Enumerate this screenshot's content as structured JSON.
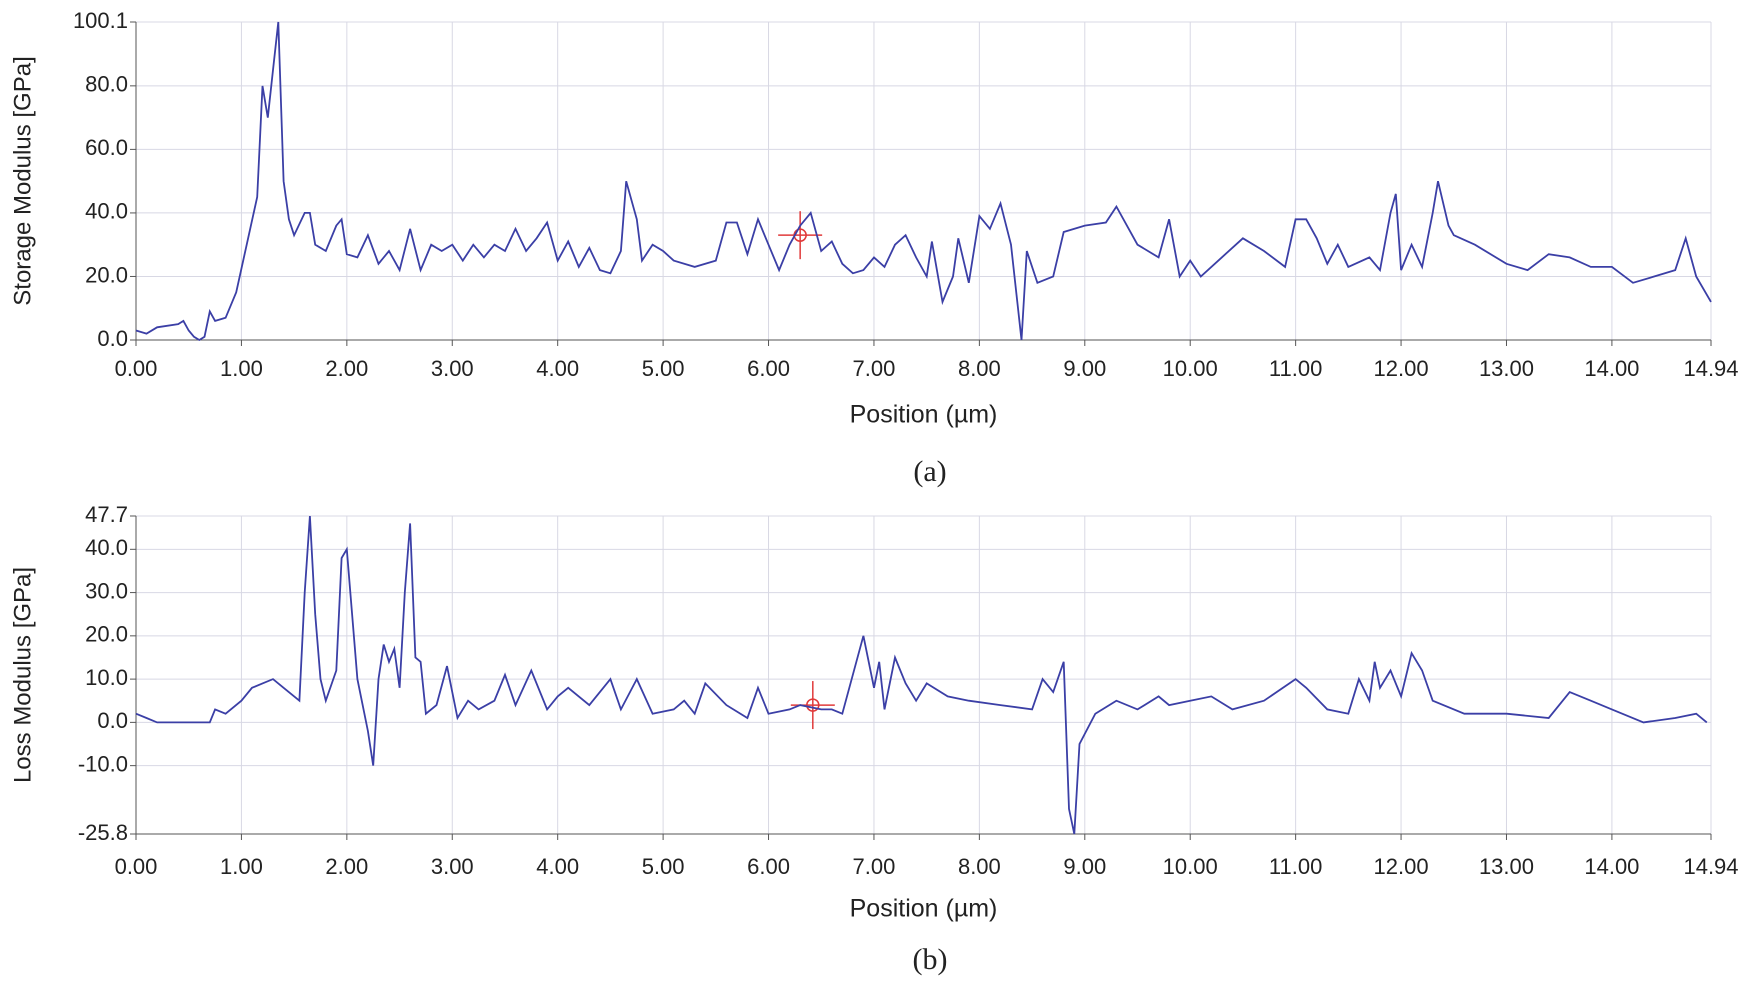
{
  "chart_data": [
    {
      "type": "line",
      "xlabel": "Position (µm)",
      "ylabel": "Storage Modulus [GPa]",
      "caption": "(a)",
      "xlim": [
        0,
        14.94
      ],
      "ylim": [
        0,
        100.1
      ],
      "grid": true,
      "xticks": [
        {
          "value": 0,
          "label": "0.00"
        },
        {
          "value": 1,
          "label": "1.00"
        },
        {
          "value": 2,
          "label": "2.00"
        },
        {
          "value": 3,
          "label": "3.00"
        },
        {
          "value": 4,
          "label": "4.00"
        },
        {
          "value": 5,
          "label": "5.00"
        },
        {
          "value": 6,
          "label": "6.00"
        },
        {
          "value": 7,
          "label": "7.00"
        },
        {
          "value": 8,
          "label": "8.00"
        },
        {
          "value": 9,
          "label": "9.00"
        },
        {
          "value": 10,
          "label": "10.00"
        },
        {
          "value": 11,
          "label": "11.00"
        },
        {
          "value": 12,
          "label": "12.00"
        },
        {
          "value": 13,
          "label": "13.00"
        },
        {
          "value": 14,
          "label": "14.00"
        },
        14.94
      ],
      "yticks": [
        {
          "value": 0,
          "label": "0.0"
        },
        {
          "value": 20,
          "label": "20.0"
        },
        {
          "value": 40,
          "label": "40.0"
        },
        {
          "value": 60,
          "label": "60.0"
        },
        {
          "value": 80,
          "label": "80.0"
        },
        100.1
      ],
      "x": [
        0,
        0.1,
        0.2,
        0.4,
        0.45,
        0.5,
        0.55,
        0.6,
        0.65,
        0.7,
        0.75,
        0.85,
        0.95,
        1.05,
        1.15,
        1.2,
        1.25,
        1.3,
        1.35,
        1.4,
        1.45,
        1.5,
        1.6,
        1.65,
        1.7,
        1.8,
        1.9,
        1.95,
        2.0,
        2.1,
        2.2,
        2.3,
        2.4,
        2.5,
        2.6,
        2.7,
        2.8,
        2.9,
        3.0,
        3.1,
        3.2,
        3.3,
        3.4,
        3.5,
        3.6,
        3.7,
        3.8,
        3.9,
        4.0,
        4.1,
        4.2,
        4.3,
        4.4,
        4.5,
        4.6,
        4.65,
        4.75,
        4.8,
        4.9,
        5.0,
        5.1,
        5.3,
        5.5,
        5.6,
        5.7,
        5.8,
        5.9,
        6.0,
        6.1,
        6.2,
        6.3,
        6.4,
        6.5,
        6.6,
        6.7,
        6.8,
        6.9,
        7.0,
        7.1,
        7.2,
        7.3,
        7.4,
        7.5,
        7.55,
        7.65,
        7.75,
        7.8,
        7.9,
        8.0,
        8.1,
        8.2,
        8.3,
        8.4,
        8.45,
        8.55,
        8.7,
        8.8,
        9.0,
        9.2,
        9.3,
        9.5,
        9.7,
        9.8,
        9.9,
        10.0,
        10.1,
        10.3,
        10.5,
        10.7,
        10.9,
        11.0,
        11.1,
        11.2,
        11.3,
        11.4,
        11.5,
        11.7,
        11.8,
        11.9,
        11.95,
        12.0,
        12.1,
        12.2,
        12.3,
        12.35,
        12.45,
        12.5,
        12.7,
        13.0,
        13.2,
        13.4,
        13.6,
        13.8,
        14.0,
        14.2,
        14.4,
        14.6,
        14.7,
        14.8,
        14.94
      ],
      "series": [
        {
          "color": "#3b3fa6",
          "values": [
            3,
            2,
            4,
            5,
            6,
            3,
            1,
            0,
            1,
            9,
            6,
            7,
            15,
            30,
            45,
            80,
            70,
            85,
            100.1,
            50,
            38,
            33,
            40,
            40,
            30,
            28,
            36,
            38,
            27,
            26,
            33,
            24,
            28,
            22,
            35,
            22,
            30,
            28,
            30,
            25,
            30,
            26,
            30,
            28,
            35,
            28,
            32,
            37,
            25,
            31,
            23,
            29,
            22,
            21,
            28,
            50,
            38,
            25,
            30,
            28,
            25,
            23,
            25,
            37,
            37,
            27,
            38,
            30,
            22,
            30,
            36,
            40,
            28,
            31,
            24,
            21,
            22,
            26,
            23,
            30,
            33,
            26,
            20,
            31,
            12,
            20,
            32,
            18,
            39,
            35,
            43,
            30,
            0,
            28,
            18,
            20,
            34,
            36,
            37,
            42,
            30,
            26,
            38,
            20,
            25,
            20,
            26,
            32,
            28,
            23,
            38,
            38,
            32,
            24,
            30,
            23,
            26,
            22,
            40,
            46,
            22,
            30,
            23,
            40,
            50,
            36,
            33,
            30,
            24,
            22,
            27,
            26,
            23,
            23,
            18,
            20,
            22,
            32,
            20,
            12
          ]
        }
      ],
      "cursor": {
        "x": 6.3,
        "y": 33
      }
    },
    {
      "type": "line",
      "xlabel": "Position (µm)",
      "ylabel": "Loss Modulus [GPa]",
      "caption": "(b)",
      "xlim": [
        0,
        14.94
      ],
      "ylim": [
        -25.8,
        47.7
      ],
      "grid": true,
      "xticks": [
        {
          "value": 0,
          "label": "0.00"
        },
        {
          "value": 1,
          "label": "1.00"
        },
        {
          "value": 2,
          "label": "2.00"
        },
        {
          "value": 3,
          "label": "3.00"
        },
        {
          "value": 4,
          "label": "4.00"
        },
        {
          "value": 5,
          "label": "5.00"
        },
        {
          "value": 6,
          "label": "6.00"
        },
        {
          "value": 7,
          "label": "7.00"
        },
        {
          "value": 8,
          "label": "8.00"
        },
        {
          "value": 9,
          "label": "9.00"
        },
        {
          "value": 10,
          "label": "10.00"
        },
        {
          "value": 11,
          "label": "11.00"
        },
        {
          "value": 12,
          "label": "12.00"
        },
        {
          "value": 13,
          "label": "13.00"
        },
        {
          "value": 14,
          "label": "14.00"
        },
        14.94
      ],
      "yticks": [
        -25.8,
        {
          "value": -10,
          "label": "-10.0"
        },
        {
          "value": 0,
          "label": "0.0"
        },
        {
          "value": 10,
          "label": "10.0"
        },
        {
          "value": 20,
          "label": "20.0"
        },
        {
          "value": 30,
          "label": "30.0"
        },
        {
          "value": 40,
          "label": "40.0"
        },
        47.7
      ],
      "x": [
        0,
        0.1,
        0.2,
        0.4,
        0.6,
        0.7,
        0.75,
        0.85,
        1.0,
        1.1,
        1.2,
        1.3,
        1.4,
        1.55,
        1.6,
        1.65,
        1.7,
        1.75,
        1.8,
        1.9,
        1.95,
        2.0,
        2.1,
        2.2,
        2.25,
        2.3,
        2.35,
        2.4,
        2.45,
        2.5,
        2.55,
        2.6,
        2.65,
        2.7,
        2.75,
        2.85,
        2.95,
        3.05,
        3.15,
        3.25,
        3.4,
        3.5,
        3.6,
        3.75,
        3.9,
        4.0,
        4.1,
        4.3,
        4.5,
        4.6,
        4.75,
        4.9,
        5.1,
        5.2,
        5.3,
        5.4,
        5.6,
        5.8,
        5.9,
        6.0,
        6.2,
        6.3,
        6.5,
        6.6,
        6.7,
        6.9,
        7.0,
        7.05,
        7.1,
        7.2,
        7.3,
        7.4,
        7.5,
        7.7,
        7.9,
        8.2,
        8.5,
        8.6,
        8.7,
        8.8,
        8.85,
        8.9,
        8.95,
        9.1,
        9.3,
        9.5,
        9.7,
        9.8,
        10.0,
        10.2,
        10.4,
        10.7,
        11.0,
        11.1,
        11.3,
        11.5,
        11.6,
        11.7,
        11.75,
        11.8,
        11.9,
        12.0,
        12.1,
        12.2,
        12.3,
        12.6,
        13.0,
        13.4,
        13.6,
        13.8,
        14.0,
        14.3,
        14.6,
        14.8,
        14.9
      ],
      "series": [
        {
          "color": "#3b3fa6",
          "values": [
            2,
            1,
            0,
            0,
            0,
            0,
            3,
            2,
            5,
            8,
            9,
            10,
            8,
            5,
            30,
            47.7,
            25,
            10,
            5,
            12,
            38,
            40,
            10,
            -2,
            -10,
            10,
            18,
            14,
            17,
            8,
            30,
            46,
            15,
            14,
            2,
            4,
            13,
            1,
            5,
            3,
            5,
            11,
            4,
            12,
            3,
            6,
            8,
            4,
            10,
            3,
            10,
            2,
            3,
            5,
            2,
            9,
            4,
            1,
            8,
            2,
            3,
            4,
            3,
            3,
            2,
            20,
            8,
            14,
            3,
            15,
            9,
            5,
            9,
            6,
            5,
            4,
            3,
            10,
            7,
            14,
            -20,
            -25.8,
            -5,
            2,
            5,
            3,
            6,
            4,
            5,
            6,
            3,
            5,
            10,
            8,
            3,
            2,
            10,
            5,
            14,
            8,
            12,
            6,
            16,
            12,
            5,
            2,
            2,
            1,
            7,
            5,
            3,
            0,
            1,
            2,
            0
          ]
        }
      ],
      "cursor": {
        "x": 6.42,
        "y": 4
      }
    }
  ]
}
